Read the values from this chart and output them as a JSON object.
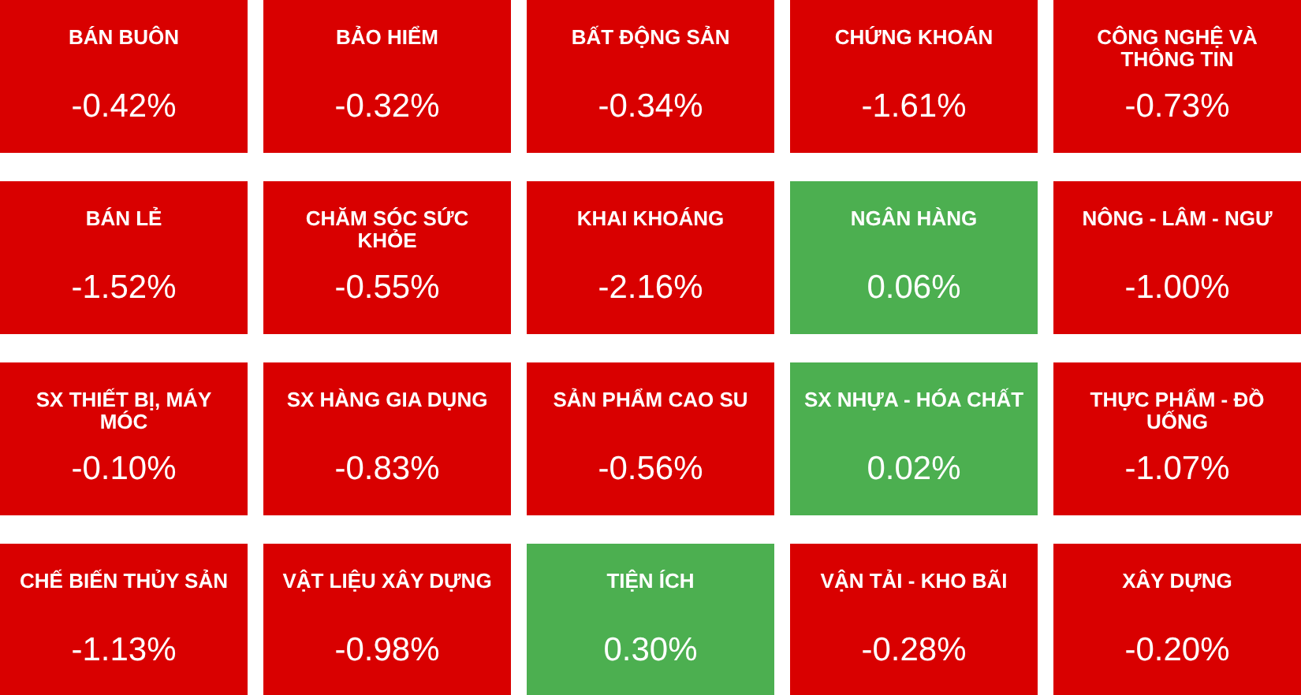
{
  "chart_data": {
    "type": "other",
    "categories": [
      "BÁN BUÔN",
      "BẢO HIỂM",
      "BẤT ĐỘNG SẢN",
      "CHỨNG KHOÁN",
      "CÔNG NGHỆ VÀ THÔNG TIN",
      "BÁN LẺ",
      "CHĂM SÓC SỨC KHỎE",
      "KHAI KHOÁNG",
      "NGÂN HÀNG",
      "NÔNG - LÂM - NGƯ",
      "SX THIẾT BỊ, MÁY MÓC",
      "SX HÀNG GIA DỤNG",
      "SẢN PHẨM CAO SU",
      "SX NHỰA - HÓA CHẤT",
      "THỰC PHẨM - ĐỒ UỐNG",
      "CHẾ BIẾN THỦY SẢN",
      "VẬT LIỆU XÂY DỰNG",
      "TIỆN ÍCH",
      "VẬN TẢI - KHO BÃI",
      "XÂY DỰNG"
    ],
    "values": [
      -0.42,
      -0.32,
      -0.34,
      -1.61,
      -0.73,
      -1.52,
      -0.55,
      -2.16,
      0.06,
      -1.0,
      -0.1,
      -0.83,
      -0.56,
      0.02,
      -1.07,
      -1.13,
      -0.98,
      0.3,
      -0.28,
      -0.2
    ],
    "value_labels": [
      "-0.42%",
      "-0.32%",
      "-0.34%",
      "-1.61%",
      "-0.73%",
      "-1.52%",
      "-0.55%",
      "-2.16%",
      "0.06%",
      "-1.00%",
      "-0.10%",
      "-0.83%",
      "-0.56%",
      "0.02%",
      "-1.07%",
      "-1.13%",
      "-0.98%",
      "0.30%",
      "-0.28%",
      "-0.20%"
    ],
    "colors": [
      "#d90000",
      "#d90000",
      "#d90000",
      "#d90000",
      "#d90000",
      "#d90000",
      "#d90000",
      "#d90000",
      "#4caf50",
      "#d90000",
      "#d90000",
      "#d90000",
      "#d90000",
      "#4caf50",
      "#d90000",
      "#d90000",
      "#d90000",
      "#4caf50",
      "#d90000",
      "#d90000"
    ]
  }
}
